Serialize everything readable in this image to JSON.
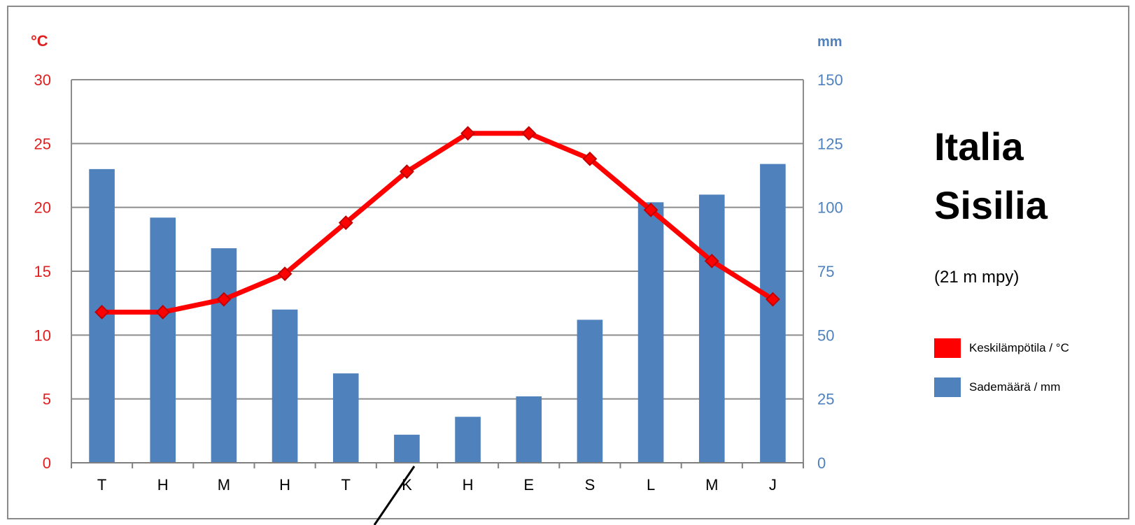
{
  "title": [
    "Italia",
    "Sisilia"
  ],
  "subtitle": "(21 m mpy)",
  "colors": {
    "temperature": "#ff0000",
    "temperature_axis": "#e02020",
    "precipitation": "#4f81bd",
    "precipitation_axis": "#4f81bd",
    "grid": "#8c8c8c",
    "axis_text": "#000000"
  },
  "chart_data": {
    "type": "bar",
    "categories": [
      "T",
      "H",
      "M",
      "H",
      "T",
      "K",
      "H",
      "E",
      "S",
      "L",
      "M",
      "J"
    ],
    "series": [
      {
        "name": "Keskilämpötila / °C",
        "type": "line",
        "axis": "left",
        "values": [
          11.8,
          11.8,
          12.8,
          14.8,
          18.8,
          22.8,
          25.8,
          25.8,
          23.8,
          19.8,
          15.8,
          12.8
        ]
      },
      {
        "name": "Sademäärä / mm",
        "type": "bar",
        "axis": "right",
        "values": [
          115,
          96,
          84,
          60,
          35,
          11,
          18,
          26,
          56,
          102,
          105,
          117
        ]
      }
    ],
    "left_axis": {
      "label": "°C",
      "range": [
        0,
        30
      ],
      "ticks": [
        0,
        5,
        10,
        15,
        20,
        25,
        30
      ]
    },
    "right_axis": {
      "label": "mm",
      "range": [
        0,
        150
      ],
      "ticks": [
        0,
        25,
        50,
        75,
        100,
        125,
        150
      ]
    },
    "grid": true,
    "legend_position": "right"
  }
}
